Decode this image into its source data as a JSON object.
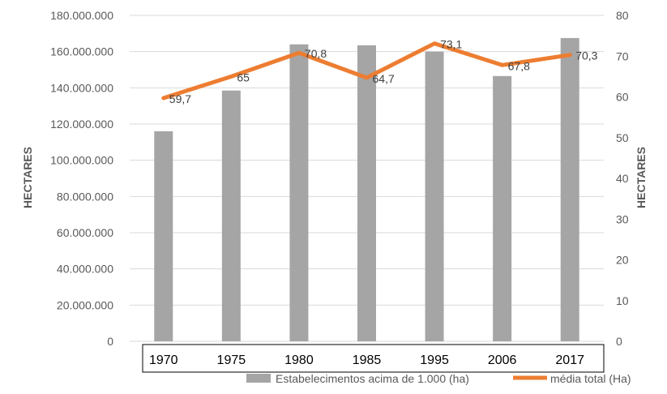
{
  "chart_data": {
    "type": "bar",
    "categories": [
      "1970",
      "1975",
      "1980",
      "1985",
      "1995",
      "2006",
      "2017"
    ],
    "series": [
      {
        "name": "Estabelecimentos acima de 1.000 (ha)",
        "type": "bar",
        "axis": "left",
        "values": [
          116000000,
          138500000,
          164000000,
          163500000,
          160000000,
          146500000,
          167500000
        ]
      },
      {
        "name": "média total (Ha)",
        "type": "line",
        "axis": "right",
        "values": [
          59.7,
          65,
          70.8,
          64.7,
          73.1,
          67.8,
          70.3
        ],
        "data_labels": [
          "59,7",
          "65",
          "70,8",
          "64,7",
          "73,1",
          "67,8",
          "70,3"
        ]
      }
    ],
    "ylabel_left": "HECTARES",
    "ylabel_right": "HECTARES",
    "ylim_left": [
      0,
      180000000
    ],
    "ylim_right": [
      0,
      80
    ],
    "yticks_left": [
      "0",
      "20.000.000",
      "40.000.000",
      "60.000.000",
      "80.000.000",
      "100.000.000",
      "120.000.000",
      "140.000.000",
      "160.000.000",
      "180.000.000"
    ],
    "yticks_right": [
      "0",
      "10",
      "20",
      "30",
      "40",
      "50",
      "60",
      "70",
      "80"
    ],
    "grid": true,
    "legend_position": "bottom",
    "colors": {
      "bar": "#a5a5a5",
      "line": "#ed7d31",
      "grid": "#d9d9d9"
    }
  }
}
